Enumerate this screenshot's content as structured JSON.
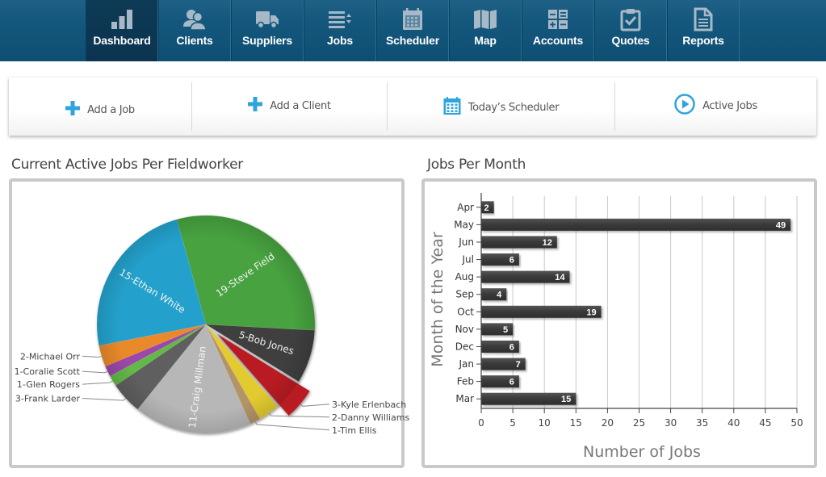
{
  "nav": {
    "items": [
      {
        "label": "Dashboard",
        "icon": "bar-chart-icon",
        "active": true
      },
      {
        "label": "Clients",
        "icon": "users-icon",
        "active": false
      },
      {
        "label": "Suppliers",
        "icon": "truck-icon",
        "active": false
      },
      {
        "label": "Jobs",
        "icon": "list-sort-icon",
        "active": false
      },
      {
        "label": "Scheduler",
        "icon": "calendar-icon",
        "active": false
      },
      {
        "label": "Map",
        "icon": "map-icon",
        "active": false
      },
      {
        "label": "Accounts",
        "icon": "calculator-icon",
        "active": false
      },
      {
        "label": "Quotes",
        "icon": "clipboard-check-icon",
        "active": false
      },
      {
        "label": "Reports",
        "icon": "document-icon",
        "active": false
      }
    ]
  },
  "actions": [
    {
      "label": "Add a Job",
      "icon": "plus-icon"
    },
    {
      "label": "Add a Client",
      "icon": "plus-icon"
    },
    {
      "label": "Today’s Scheduler",
      "icon": "calendar-icon"
    },
    {
      "label": "Active Jobs",
      "icon": "play-circle-icon"
    }
  ],
  "colors": {
    "nav_bg": "#14577d",
    "accent": "#29a0d8",
    "bar": "#3d3d3d"
  },
  "chart_data": [
    {
      "type": "pie",
      "title": "Current Active Jobs Per Fieldworker",
      "slices": [
        {
          "label": "19-Steve Field",
          "value": 19,
          "color": "#47a23f"
        },
        {
          "label": "5-Bob Jones",
          "value": 5,
          "color": "#3f3f3f"
        },
        {
          "label": "3-Kyle Erlenbach",
          "value": 3,
          "color": "#b81f24",
          "exploded": true
        },
        {
          "label": "2-Danny Williams",
          "value": 2,
          "color": "#e2cb2f"
        },
        {
          "label": "1-Tim Ellis",
          "value": 1,
          "color": "#b39468"
        },
        {
          "label": "11-Craig Millman",
          "value": 11,
          "color": "#b7b7b7"
        },
        {
          "label": "3-Frank Larder",
          "value": 3,
          "color": "#5f5f5f"
        },
        {
          "label": "1-Glen Rogers",
          "value": 1,
          "color": "#62b947"
        },
        {
          "label": "1-Coralie Scott",
          "value": 1,
          "color": "#9b48a9"
        },
        {
          "label": "2-Michael Orr",
          "value": 2,
          "color": "#ea8929"
        },
        {
          "label": "15-Ethan White",
          "value": 15,
          "color": "#23a1cc"
        }
      ]
    },
    {
      "type": "bar",
      "orientation": "horizontal",
      "title": "Jobs Per Month",
      "categories": [
        "Apr",
        "May",
        "Jun",
        "Jul",
        "Aug",
        "Sep",
        "Oct",
        "Nov",
        "Dec",
        "Jan",
        "Feb",
        "Mar"
      ],
      "values": [
        2,
        49,
        12,
        6,
        14,
        4,
        19,
        5,
        6,
        7,
        6,
        15
      ],
      "xlabel": "Number of Jobs",
      "ylabel": "Month of the Year",
      "xlim": [
        0,
        50
      ],
      "xticks": [
        0,
        5,
        10,
        15,
        20,
        25,
        30,
        35,
        40,
        45,
        50
      ],
      "grid": true
    }
  ]
}
